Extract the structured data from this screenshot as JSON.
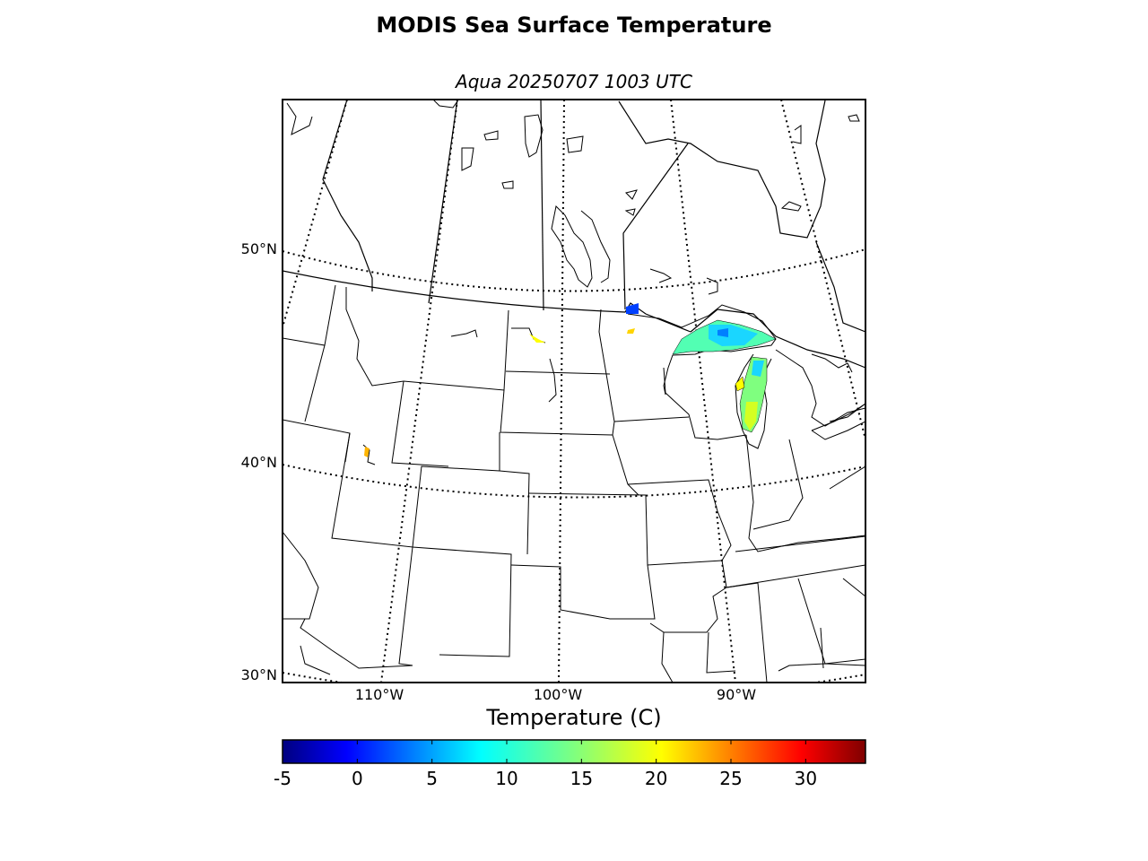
{
  "header": {
    "title": "MODIS Sea Surface Temperature",
    "subtitle": "Aqua 20250707 1003 UTC"
  },
  "map": {
    "lat_labels": [
      "50°N",
      "40°N",
      "30°N"
    ],
    "lon_labels": [
      "110°W",
      "100°W",
      "90°W"
    ]
  },
  "colorbar": {
    "label": "Temperature (C)",
    "colormap": "jet",
    "min": -5,
    "max": 34,
    "ticks": [
      "-5",
      "0",
      "5",
      "10",
      "15",
      "20",
      "25",
      "30"
    ]
  }
}
